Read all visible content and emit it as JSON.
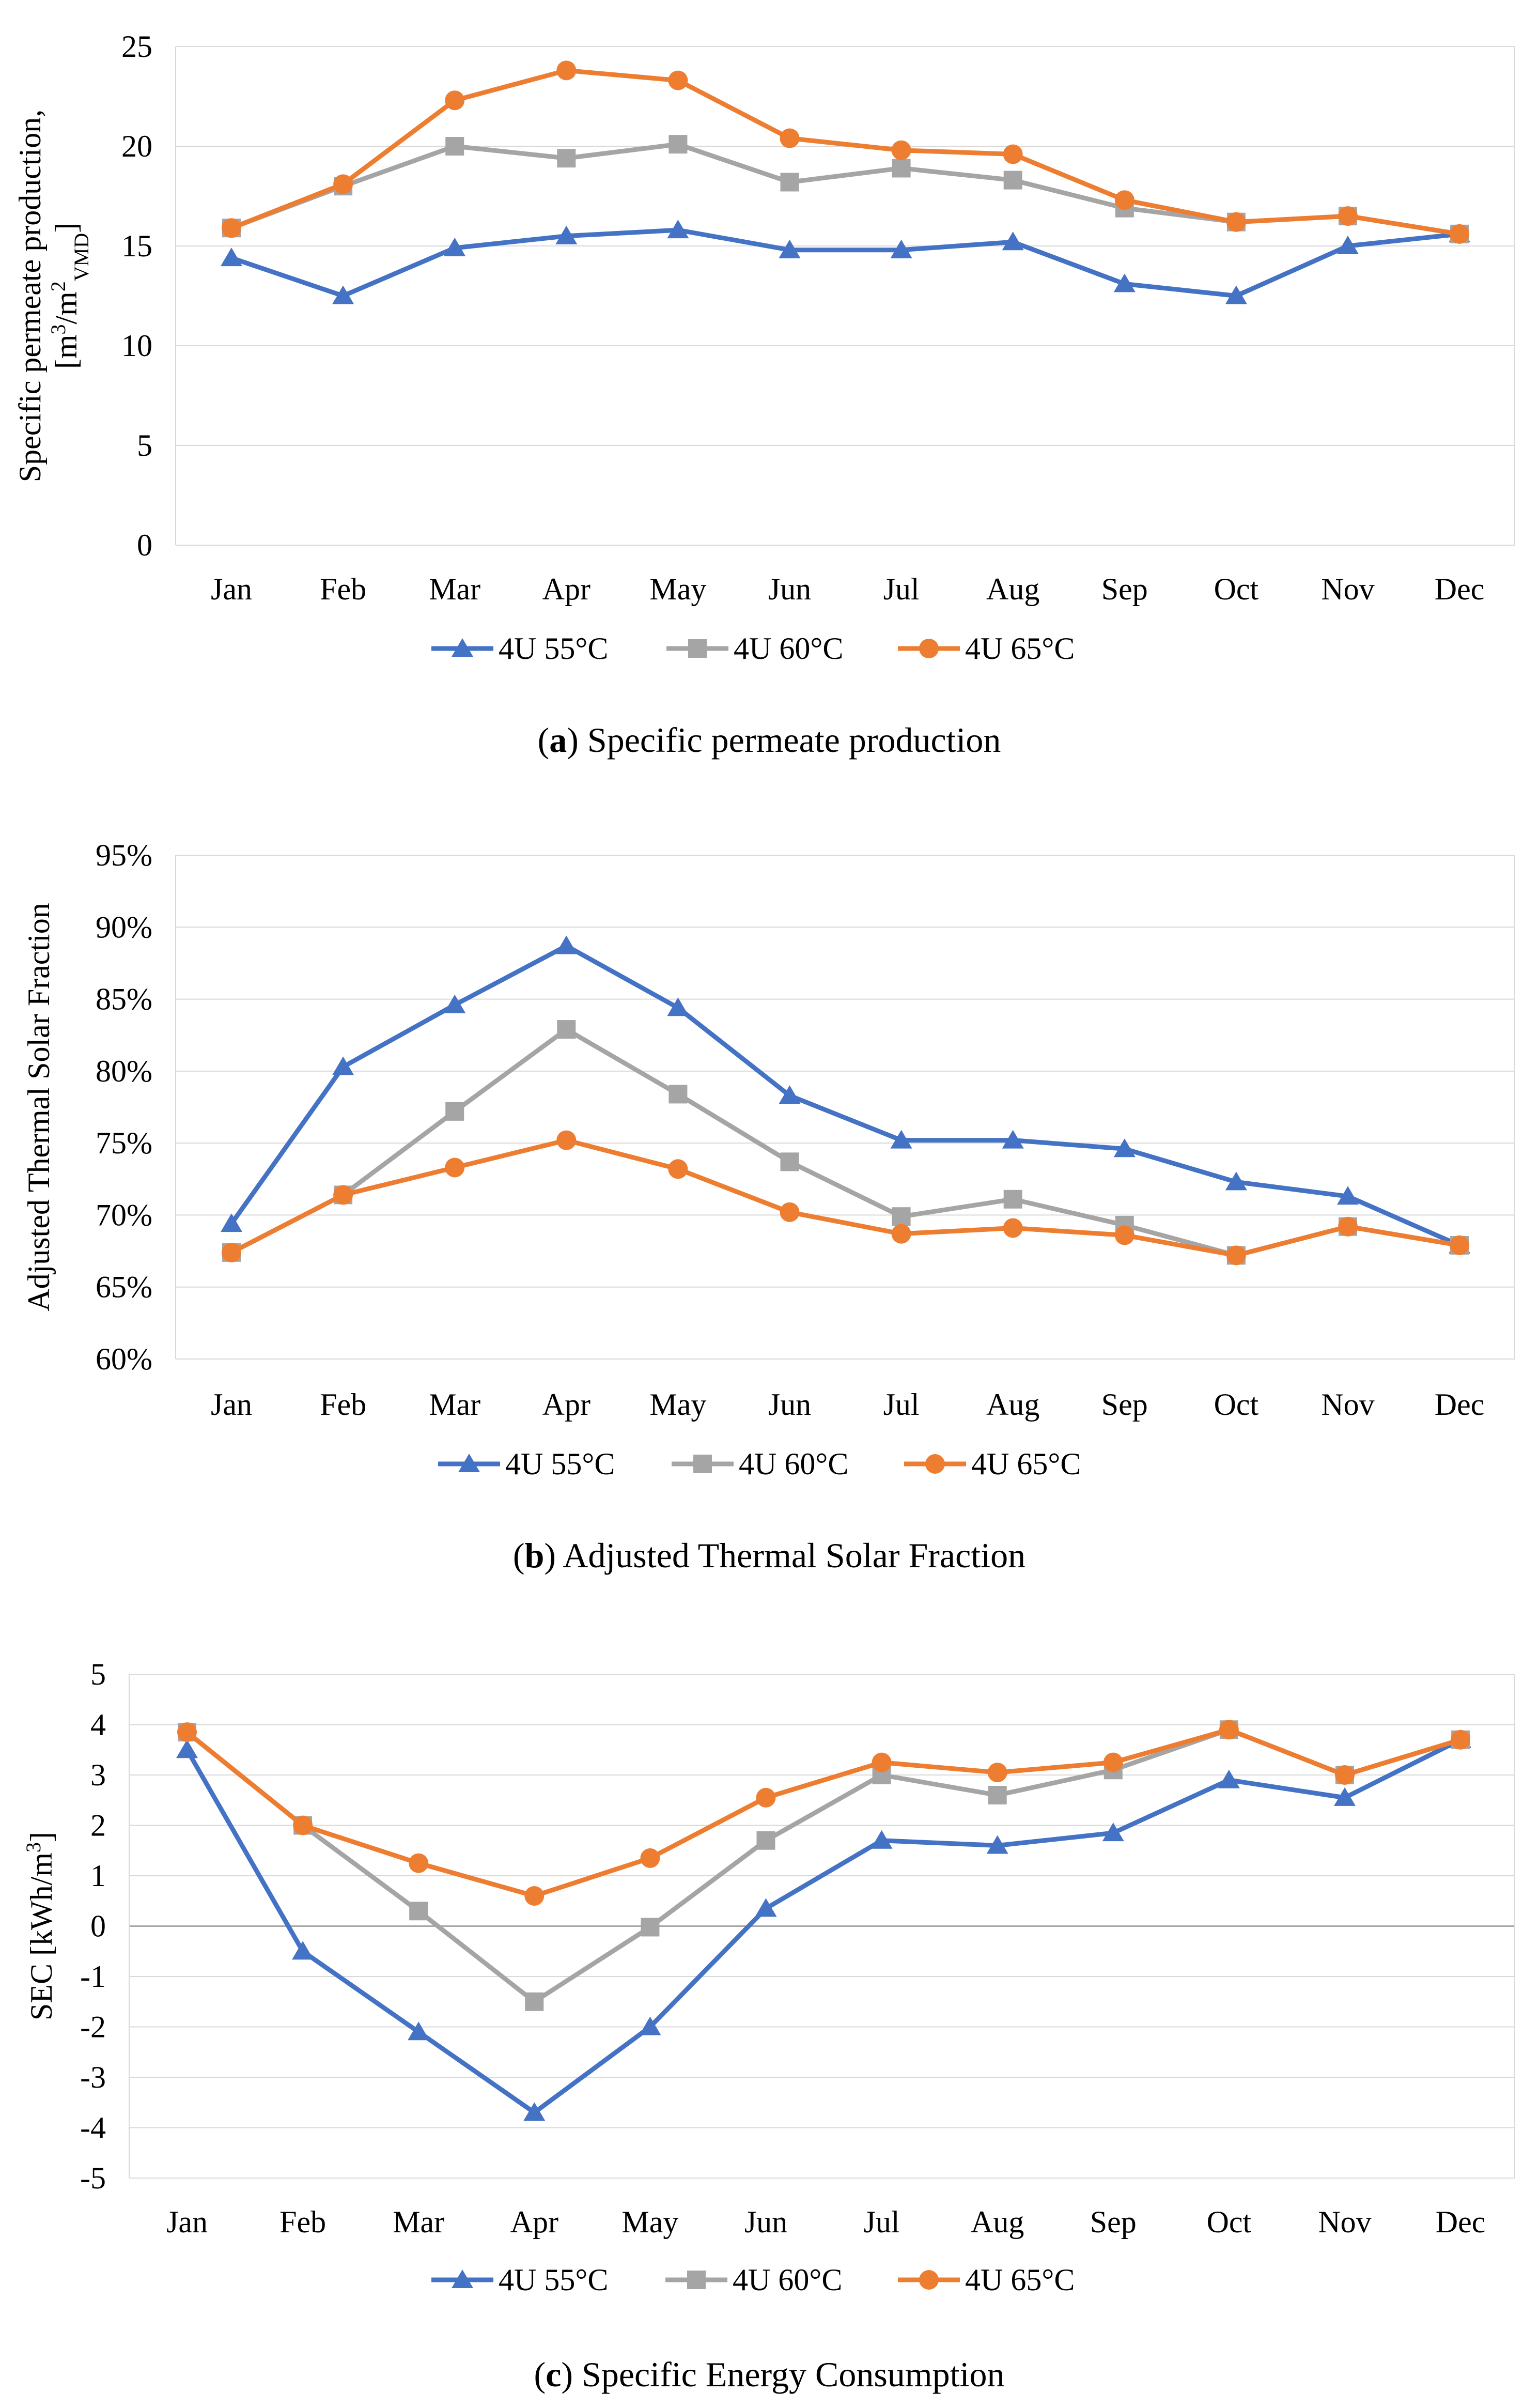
{
  "figure": {
    "colors": {
      "55": "#4472C4",
      "60": "#A5A5A5",
      "65": "#ED7D31",
      "grid": "#D9D9D9",
      "zero_line": "#A6A6A6"
    }
  },
  "chart_data": [
    {
      "id": "a",
      "type": "line",
      "categories": [
        "Jan",
        "Feb",
        "Mar",
        "Apr",
        "May",
        "Jun",
        "Jul",
        "Aug",
        "Sep",
        "Oct",
        "Nov",
        "Dec"
      ],
      "yticks": [
        "0",
        "5",
        "10",
        "15",
        "20",
        "25"
      ],
      "ylim": [
        0,
        25
      ],
      "ylabel_line1": "Specific permeate production,",
      "ylabel_line2": {
        "open": "[m",
        "sup1": "3",
        "mid": "/m",
        "sup2": "2",
        "sub": "VMD",
        "close": "]"
      },
      "caption_letter": "a",
      "caption_open": "(",
      "caption_close": ")",
      "caption_text": " Specific permeate production",
      "series": [
        {
          "name": "4U 55°C",
          "marker": "triangle",
          "values": [
            14.4,
            12.5,
            14.9,
            15.5,
            15.8,
            14.8,
            14.8,
            15.2,
            13.1,
            12.5,
            15.0,
            15.6
          ]
        },
        {
          "name": "4U 60°C",
          "marker": "square",
          "values": [
            15.9,
            18.0,
            20.0,
            19.4,
            20.1,
            18.2,
            18.9,
            18.3,
            16.9,
            16.2,
            16.5,
            15.6
          ]
        },
        {
          "name": "4U 65°C",
          "marker": "circle",
          "values": [
            15.9,
            18.1,
            22.3,
            23.8,
            23.3,
            20.4,
            19.8,
            19.6,
            17.3,
            16.2,
            16.5,
            15.6
          ]
        }
      ]
    },
    {
      "id": "b",
      "type": "line",
      "categories": [
        "Jan",
        "Feb",
        "Mar",
        "Apr",
        "May",
        "Jun",
        "Jul",
        "Aug",
        "Sep",
        "Oct",
        "Nov",
        "Dec"
      ],
      "yticks": [
        "60%",
        "65%",
        "70%",
        "75%",
        "80%",
        "85%",
        "90%",
        "95%"
      ],
      "ylim": [
        60,
        95
      ],
      "ylabel": "Adjusted Thermal Solar Fraction",
      "caption_letter": "b",
      "caption_open": "(",
      "caption_close": ")",
      "caption_text": " Adjusted Thermal Solar Fraction",
      "series": [
        {
          "name": "4U 55°C",
          "marker": "triangle",
          "values": [
            69.4,
            80.3,
            84.6,
            88.7,
            84.4,
            78.3,
            75.2,
            75.2,
            74.6,
            72.3,
            71.3,
            67.9
          ]
        },
        {
          "name": "4U 60°C",
          "marker": "square",
          "values": [
            67.4,
            71.4,
            77.2,
            82.9,
            78.4,
            73.7,
            69.9,
            71.1,
            69.3,
            67.2,
            69.2,
            67.9
          ]
        },
        {
          "name": "4U 65°C",
          "marker": "circle",
          "values": [
            67.4,
            71.4,
            73.3,
            75.2,
            73.2,
            70.2,
            68.7,
            69.1,
            68.6,
            67.2,
            69.2,
            67.9
          ]
        }
      ]
    },
    {
      "id": "c",
      "type": "line",
      "categories": [
        "Jan",
        "Feb",
        "Mar",
        "Apr",
        "May",
        "Jun",
        "Jul",
        "Aug",
        "Sep",
        "Oct",
        "Nov",
        "Dec"
      ],
      "yticks": [
        "-5",
        "-4",
        "-3",
        "-2",
        "-1",
        "0",
        "1",
        "2",
        "3",
        "4",
        "5"
      ],
      "ylim": [
        -5,
        5
      ],
      "ylabel_parts": {
        "open": "SEC [kWh/m",
        "sup": "3",
        "close": "]"
      },
      "caption_letter": "c",
      "caption_open": "(",
      "caption_close": ")",
      "caption_text": " Specific Energy Consumption",
      "series": [
        {
          "name": "4U 55°C",
          "marker": "triangle",
          "values": [
            3.5,
            -0.5,
            -2.1,
            -3.7,
            -2.0,
            0.35,
            1.7,
            1.6,
            1.85,
            2.9,
            2.55,
            3.7
          ]
        },
        {
          "name": "4U 60°C",
          "marker": "square",
          "values": [
            3.85,
            2.0,
            0.3,
            -1.5,
            -0.02,
            1.7,
            3.0,
            2.6,
            3.1,
            3.9,
            3.0,
            3.7
          ]
        },
        {
          "name": "4U 65°C",
          "marker": "circle",
          "values": [
            3.85,
            2.0,
            1.25,
            0.6,
            1.35,
            2.55,
            3.25,
            3.05,
            3.25,
            3.9,
            3.0,
            3.7
          ]
        }
      ]
    }
  ]
}
